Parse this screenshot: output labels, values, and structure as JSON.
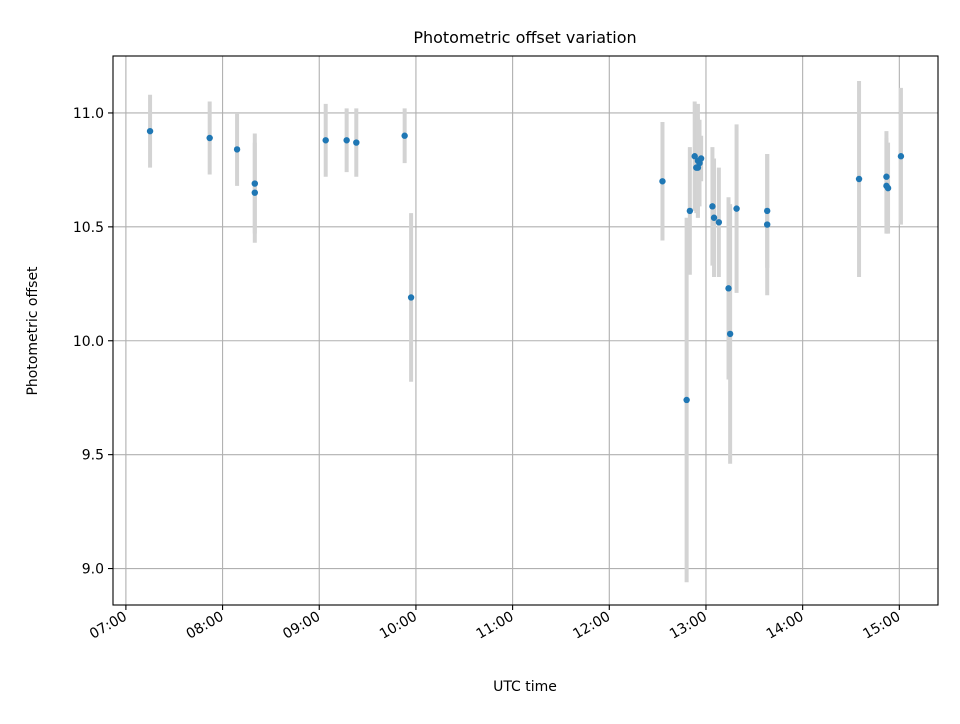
{
  "chart_data": {
    "type": "scatter",
    "title": "Photometric offset variation",
    "xlabel": "UTC time",
    "ylabel": "Photometric offset",
    "xlim": [
      "06:52",
      "15:24"
    ],
    "ylim": [
      8.84,
      11.25
    ],
    "x_ticks": [
      "07:00",
      "08:00",
      "09:00",
      "10:00",
      "11:00",
      "12:00",
      "13:00",
      "14:00",
      "15:00"
    ],
    "y_ticks": [
      "9.0",
      "9.5",
      "10.0",
      "10.5",
      "11.0"
    ],
    "grid": true,
    "legend": "none",
    "points": [
      {
        "x": "07:15",
        "y": 10.92,
        "err": 0.16
      },
      {
        "x": "07:52",
        "y": 10.89,
        "err": 0.16
      },
      {
        "x": "08:09",
        "y": 10.84,
        "err": 0.16
      },
      {
        "x": "08:20",
        "y": 10.69,
        "err": 0.22
      },
      {
        "x": "08:20",
        "y": 10.65,
        "err": 0.22
      },
      {
        "x": "09:04",
        "y": 10.88,
        "err": 0.16
      },
      {
        "x": "09:17",
        "y": 10.88,
        "err": 0.14
      },
      {
        "x": "09:23",
        "y": 10.87,
        "err": 0.15
      },
      {
        "x": "09:53",
        "y": 10.9,
        "err": 0.12
      },
      {
        "x": "09:57",
        "y": 10.19,
        "err": 0.37
      },
      {
        "x": "12:33",
        "y": 10.7,
        "err": 0.26
      },
      {
        "x": "12:48",
        "y": 9.74,
        "err": 0.8
      },
      {
        "x": "12:50",
        "y": 10.57,
        "err": 0.28
      },
      {
        "x": "12:53",
        "y": 10.81,
        "err": 0.24
      },
      {
        "x": "12:54",
        "y": 10.76,
        "err": 0.2
      },
      {
        "x": "12:55",
        "y": 10.79,
        "err": 0.25
      },
      {
        "x": "12:55",
        "y": 10.76,
        "err": 0.22
      },
      {
        "x": "12:56",
        "y": 10.78,
        "err": 0.19
      },
      {
        "x": "12:57",
        "y": 10.8,
        "err": 0.1
      },
      {
        "x": "13:04",
        "y": 10.59,
        "err": 0.26
      },
      {
        "x": "13:05",
        "y": 10.54,
        "err": 0.26
      },
      {
        "x": "13:08",
        "y": 10.52,
        "err": 0.24
      },
      {
        "x": "13:14",
        "y": 10.23,
        "err": 0.4
      },
      {
        "x": "13:15",
        "y": 10.03,
        "err": 0.57
      },
      {
        "x": "13:19",
        "y": 10.58,
        "err": 0.37
      },
      {
        "x": "13:38",
        "y": 10.57,
        "err": 0.25
      },
      {
        "x": "13:38",
        "y": 10.51,
        "err": 0.31
      },
      {
        "x": "14:35",
        "y": 10.71,
        "err": 0.43
      },
      {
        "x": "14:52",
        "y": 10.72,
        "err": 0.2
      },
      {
        "x": "14:52",
        "y": 10.68,
        "err": 0.21
      },
      {
        "x": "14:53",
        "y": 10.67,
        "err": 0.2
      },
      {
        "x": "15:01",
        "y": 10.81,
        "err": 0.3
      }
    ],
    "colors": {
      "point": "#1f77b4",
      "errorbar": "#d3d3d3",
      "grid": "#b0b0b0",
      "axis": "#000000"
    }
  }
}
